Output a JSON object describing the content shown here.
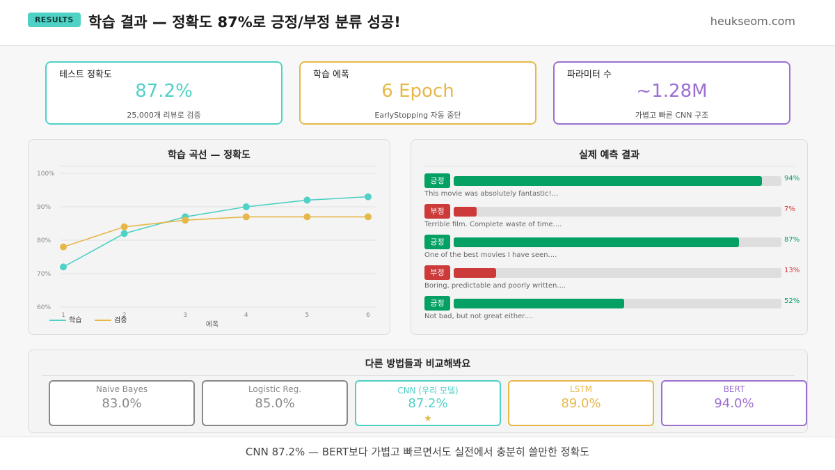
{
  "header": {
    "badge": "RESULTS",
    "title": "학습 결과 — 정확도 87%로 긍정/부정 분류 성공!",
    "site": "heukseom.com"
  },
  "stats": [
    {
      "label": "테스트 정확도",
      "value": "87.2%",
      "sub": "25,000개 리뷰로 검증",
      "color": "#4fd1c5"
    },
    {
      "label": "학습 에폭",
      "value": "6 Epoch",
      "sub": "EarlyStopping 자동 중단",
      "color": "#e6b84a"
    },
    {
      "label": "파라미터 수",
      "value": "~1.28M",
      "sub": "가볍고 빠른 CNN 구조",
      "color": "#9b6fd1"
    }
  ],
  "chart_data": {
    "type": "line",
    "title": "학습 곡선 — 정확도",
    "xlabel": "에폭",
    "ylabel": "",
    "x": [
      1,
      2,
      3,
      4,
      5,
      6
    ],
    "yticks": [
      "60%",
      "70%",
      "80%",
      "90%",
      "100%"
    ],
    "ylim": [
      60,
      100
    ],
    "series": [
      {
        "name": "학습",
        "color": "#4fd1c5",
        "values": [
          72,
          82,
          87,
          90,
          92,
          93
        ]
      },
      {
        "name": "검증",
        "color": "#e6b84a",
        "values": [
          78,
          84,
          86,
          87,
          87,
          87
        ]
      }
    ],
    "legend": "bottom-left",
    "grid": true
  },
  "predictions": {
    "title": "실제 예측 결과",
    "items": [
      {
        "tag": "긍정",
        "pct": "94%",
        "value": 94,
        "text": "This movie was absolutely fantastic!...",
        "positive": true
      },
      {
        "tag": "부정",
        "pct": "7%",
        "value": 7,
        "text": "Terrible film. Complete waste of time....",
        "positive": false
      },
      {
        "tag": "긍정",
        "pct": "87%",
        "value": 87,
        "text": "One of the best movies I have seen....",
        "positive": true
      },
      {
        "tag": "부정",
        "pct": "13%",
        "value": 13,
        "text": "Boring, predictable and poorly written....",
        "positive": false
      },
      {
        "tag": "긍정",
        "pct": "52%",
        "value": 52,
        "text": "Not bad, but not great either....",
        "positive": true
      }
    ],
    "pos_color": "#04a064",
    "neg_color": "#cc3a3a"
  },
  "comparison": {
    "title": "다른 방법들과 비교해봐요",
    "items": [
      {
        "name": "Naive Bayes",
        "acc": "83.0%",
        "color": "#888888",
        "star": ""
      },
      {
        "name": "Logistic Reg.",
        "acc": "85.0%",
        "color": "#888888",
        "star": ""
      },
      {
        "name": "CNN (우리 모델)",
        "acc": "87.2%",
        "color": "#4fd1c5",
        "star": "★"
      },
      {
        "name": "LSTM",
        "acc": "89.0%",
        "color": "#e6b84a",
        "star": ""
      },
      {
        "name": "BERT",
        "acc": "94.0%",
        "color": "#9b6fd1",
        "star": ""
      }
    ]
  },
  "footer": "CNN 87.2% — BERT보다 가볍고 빠르면서도 실전에서 충분히 쓸만한 정확도"
}
